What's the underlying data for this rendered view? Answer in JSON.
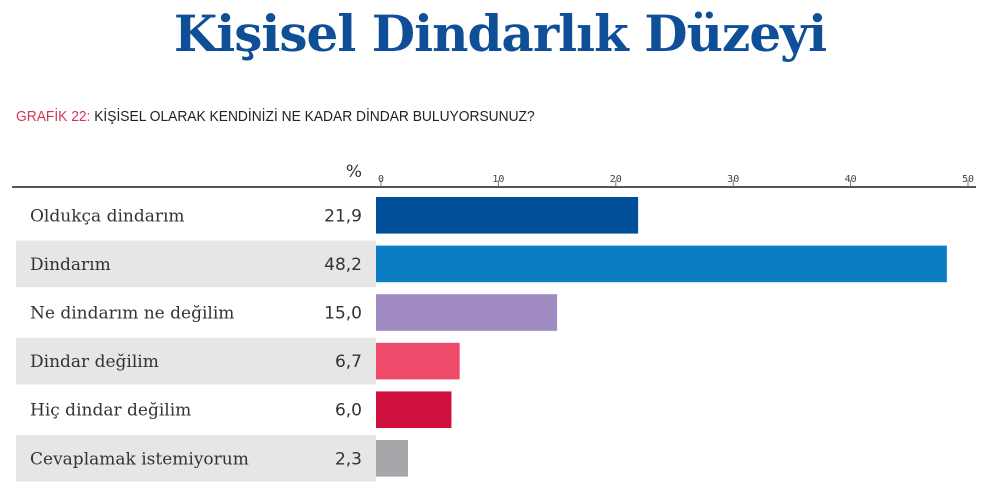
{
  "chart_data": {
    "type": "bar",
    "orientation": "horizontal",
    "title": "Kişisel Dindarlık Düzeyi",
    "subtitle_label": "GRAFİK 22:",
    "subtitle": "KİŞİSEL OLARAK KENDİNİZİ NE KADAR DİNDAR BULUYORSUNUZ?",
    "unit": "%",
    "categories": [
      "Oldukça dindarım",
      "Dindarım",
      "Ne dindarım ne değilim",
      "Dindar değilim",
      "Hiç dindar değilim",
      "Cevaplamak istemiyorum"
    ],
    "values": [
      21.9,
      48.2,
      15.0,
      6.7,
      6.0,
      2.3
    ],
    "value_labels": [
      "21,9",
      "48,2",
      "15,0",
      "6,7",
      "6,0",
      "2,3"
    ],
    "colors": [
      "#004f98",
      "#0b7dc3",
      "#a08ac2",
      "#ef4b6b",
      "#d0103f",
      "#a7a7ab"
    ],
    "xlim": [
      0,
      50
    ],
    "ticks": [
      0,
      10,
      20,
      30,
      40,
      50
    ],
    "accent_color": "#d0365a",
    "title_color": "#0f4f97"
  }
}
